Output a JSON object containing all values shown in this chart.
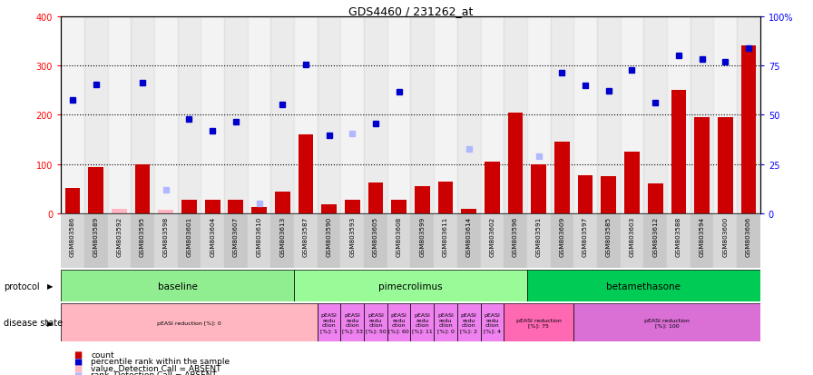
{
  "title": "GDS4460 / 231262_at",
  "samples": [
    "GSM803586",
    "GSM803589",
    "GSM803592",
    "GSM803595",
    "GSM803598",
    "GSM803601",
    "GSM803604",
    "GSM803607",
    "GSM803610",
    "GSM803613",
    "GSM803587",
    "GSM803590",
    "GSM803593",
    "GSM803605",
    "GSM803608",
    "GSM803599",
    "GSM803611",
    "GSM803614",
    "GSM803602",
    "GSM803596",
    "GSM803591",
    "GSM803609",
    "GSM803597",
    "GSM803585",
    "GSM803603",
    "GSM803612",
    "GSM803588",
    "GSM803594",
    "GSM803600",
    "GSM803606"
  ],
  "counts": [
    52,
    93,
    3,
    100,
    3,
    28,
    28,
    28,
    12,
    45,
    160,
    18,
    28,
    62,
    28,
    56,
    65,
    10,
    105,
    205,
    100,
    145,
    78,
    75,
    125,
    60,
    250,
    195,
    195,
    340
  ],
  "ranks": [
    230,
    262,
    null,
    265,
    null,
    192,
    167,
    185,
    null,
    220,
    301,
    159,
    null,
    182,
    247,
    null,
    null,
    null,
    null,
    null,
    null,
    285,
    260,
    248,
    290,
    225,
    320,
    312,
    307,
    335
  ],
  "absent_counts": [
    null,
    null,
    10,
    null,
    8,
    null,
    null,
    null,
    null,
    null,
    null,
    null,
    null,
    null,
    null,
    null,
    null,
    null,
    null,
    null,
    null,
    null,
    null,
    null,
    null,
    null,
    null,
    null,
    null,
    null
  ],
  "absent_ranks": [
    null,
    null,
    null,
    null,
    47,
    null,
    null,
    null,
    20,
    null,
    null,
    null,
    162,
    null,
    null,
    null,
    null,
    130,
    null,
    null,
    115,
    null,
    null,
    null,
    null,
    null,
    null,
    null,
    null,
    null
  ],
  "protocols": [
    {
      "label": "baseline",
      "start": 0,
      "end": 9,
      "color": "#90ee90"
    },
    {
      "label": "pimecrolimus",
      "start": 10,
      "end": 19,
      "color": "#98fb98"
    },
    {
      "label": "betamethasone",
      "start": 20,
      "end": 29,
      "color": "#00cc55"
    }
  ],
  "disease_states": [
    {
      "label": "pEASI reduction [%]: 0",
      "start": 0,
      "end": 10,
      "color": "#ffb6c1"
    },
    {
      "label": "pEASI\nredu\nction\n[%]: 1",
      "start": 11,
      "end": 11,
      "color": "#ee82ee"
    },
    {
      "label": "pEASI\nredu\nction\n[%]: 33",
      "start": 12,
      "end": 12,
      "color": "#ee82ee"
    },
    {
      "label": "pEASI\nredu\nction\n[%]: 50",
      "start": 13,
      "end": 13,
      "color": "#ee82ee"
    },
    {
      "label": "pEASI\nredu\nction\n[%]: 60",
      "start": 14,
      "end": 14,
      "color": "#ee82ee"
    },
    {
      "label": "pEASI\nredu\nction\n[%]: 11",
      "start": 15,
      "end": 15,
      "color": "#ee82ee"
    },
    {
      "label": "pEASI\nredu\nction\n[%]: 0",
      "start": 16,
      "end": 16,
      "color": "#ee82ee"
    },
    {
      "label": "pEASI\nredu\nction\n[%]: 2",
      "start": 17,
      "end": 17,
      "color": "#ee82ee"
    },
    {
      "label": "pEASI\nredu\nction\n[%]: 4",
      "start": 18,
      "end": 18,
      "color": "#ee82ee"
    },
    {
      "label": "pEASI reduction\n[%]: 75",
      "start": 19,
      "end": 21,
      "color": "#ff69b4"
    },
    {
      "label": "pEASI reduction\n[%]: 100",
      "start": 22,
      "end": 29,
      "color": "#da70d6"
    }
  ],
  "ylim": [
    0,
    400
  ],
  "yticks_left": [
    0,
    100,
    200,
    300,
    400
  ],
  "yticks_right_vals": [
    0,
    100,
    200,
    300,
    400
  ],
  "yticks_right_labels": [
    "0",
    "25",
    "50",
    "75",
    "100%"
  ],
  "bar_color": "#cc0000",
  "rank_color": "#0000cc",
  "absent_bar_color": "#ffb6c1",
  "absent_rank_color": "#b0b8ff",
  "plot_bg": "#f0f0f0"
}
